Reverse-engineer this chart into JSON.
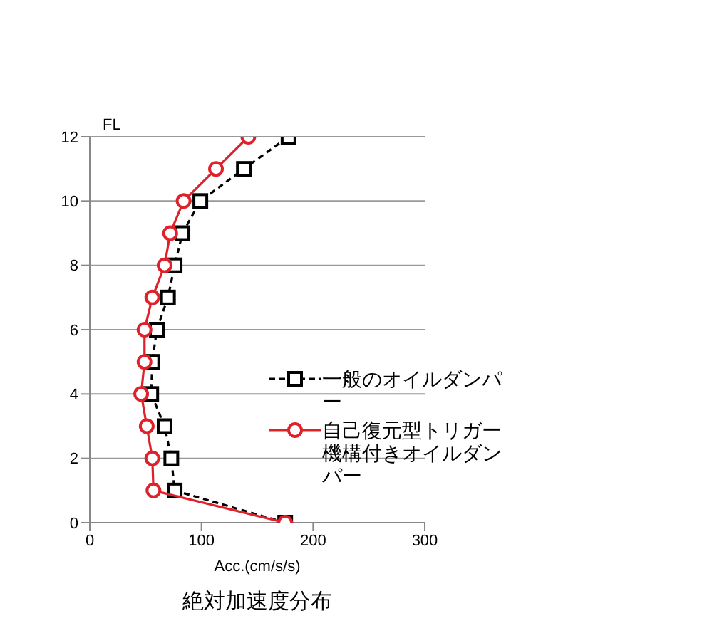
{
  "chart_data": {
    "type": "line",
    "title": "絶対加速度分布",
    "xlabel": "Acc.(cm/s/s)",
    "ylabel": "FL",
    "series": [
      {
        "name": "一般のオイルダンパー",
        "color": "#000000",
        "marker": "square",
        "line_style": "dashed",
        "x": [
          175,
          76,
          73,
          67,
          55,
          56,
          60,
          70,
          76,
          83,
          99,
          138,
          178
        ],
        "values": [
          0,
          1,
          2,
          3,
          4,
          5,
          6,
          7,
          8,
          9,
          10,
          11,
          12
        ]
      },
      {
        "name": "自己復元型トリガー機構付きオイルダンパー",
        "color": "#e0202a",
        "marker": "circle",
        "line_style": "solid",
        "x": [
          175,
          57,
          56,
          51,
          46,
          49,
          49,
          56,
          67,
          72,
          84,
          113,
          142
        ],
        "values": [
          0,
          1,
          2,
          3,
          4,
          5,
          6,
          7,
          8,
          9,
          10,
          11,
          12
        ]
      }
    ],
    "xlim": [
      0,
      300
    ],
    "xticks": [
      0,
      100,
      200,
      300
    ],
    "ylim": [
      0,
      12
    ],
    "yticks": [
      0,
      2,
      4,
      6,
      8,
      10,
      12
    ],
    "grid": "y",
    "legend": "right"
  }
}
